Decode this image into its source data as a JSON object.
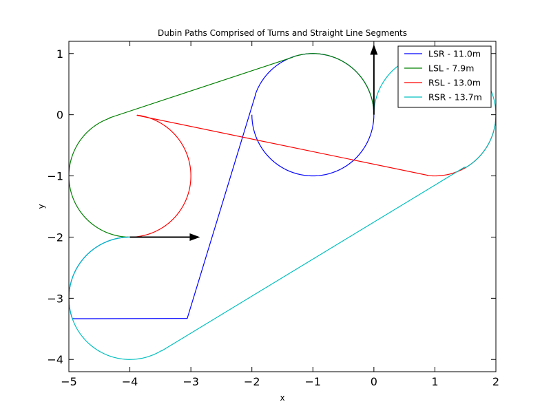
{
  "chart_data": {
    "type": "line",
    "title": "Dubin Paths Comprised of Turns and Straight Line Segments",
    "xlabel": "x",
    "ylabel": "y",
    "xlim": [
      -5,
      2
    ],
    "ylim": [
      -4.2,
      1.2
    ],
    "xticks": [
      -5,
      -4,
      -3,
      -2,
      -1,
      0,
      1,
      2
    ],
    "yticks": [
      1,
      0,
      -1,
      -2,
      -3,
      -4
    ],
    "xtick_labels": [
      "−5",
      "−4",
      "−3",
      "−2",
      "−1",
      "0",
      "1",
      "2"
    ],
    "ytick_labels": [
      "1",
      "0",
      "−1",
      "−2",
      "−3",
      "−4"
    ],
    "grid": false,
    "legend_position": "top-right",
    "arrows": [
      {
        "from": [
          -4,
          -2
        ],
        "to": [
          -2.85,
          -2
        ],
        "color": "#000000"
      },
      {
        "from": [
          0,
          0
        ],
        "to": [
          0,
          1.15
        ],
        "color": "#000000"
      }
    ],
    "series": [
      {
        "name": "LSR - 11.0m",
        "color": "#0000ff",
        "segments": [
          {
            "kind": "arc",
            "cx": -4,
            "cy": -3,
            "r": 1,
            "a0": 90,
            "a1": 199.5,
            "dir": 1
          },
          {
            "kind": "line",
            "x0": -3.06,
            "y0": -3.33,
            "x1": -1.94,
            "y1": 0.33
          },
          {
            "kind": "arc",
            "cx": -1,
            "cy": 0,
            "r": 1,
            "a0": 160.5,
            "a1": -180,
            "dir": -1
          }
        ]
      },
      {
        "name": "LSL - 7.9m",
        "color": "#008000",
        "segments": [
          {
            "kind": "arc",
            "cx": -4,
            "cy": -1,
            "r": 1,
            "a0": 270,
            "a1": 109,
            "dir": -1
          },
          {
            "kind": "line",
            "x0": -4.33,
            "y0": -0.05,
            "x1": -1.33,
            "y1": 0.94
          },
          {
            "kind": "arc",
            "cx": -1,
            "cy": 0,
            "r": 1,
            "a0": 109,
            "a1": 0,
            "dir": -1
          }
        ]
      },
      {
        "name": "RSL - 13.0m",
        "color": "#ff0000",
        "segments": [
          {
            "kind": "arc",
            "cx": -4,
            "cy": -1,
            "r": 1,
            "a0": 270,
            "a1": 443,
            "dir": -1
          },
          {
            "kind": "line",
            "x0": -3.88,
            "y0": -0.01,
            "x1": 0.88,
            "y1": -0.99
          },
          {
            "kind": "arc",
            "cx": 1,
            "cy": 0,
            "r": 1,
            "a0": 263,
            "a1": 360,
            "dir": 1
          }
        ]
      },
      {
        "name": "RSR - 13.7m",
        "color": "#00bfbf",
        "segments": [
          {
            "kind": "arc",
            "cx": -4,
            "cy": -3,
            "r": 1,
            "a0": 90,
            "a1": 301,
            "dir": 1
          },
          {
            "kind": "line",
            "x0": -3.48,
            "y0": -3.86,
            "x1": 1.48,
            "y1": -0.86
          },
          {
            "kind": "arc",
            "cx": 1,
            "cy": 0,
            "r": 1,
            "a0": 301,
            "a1": 540,
            "dir": 1
          }
        ]
      }
    ]
  }
}
